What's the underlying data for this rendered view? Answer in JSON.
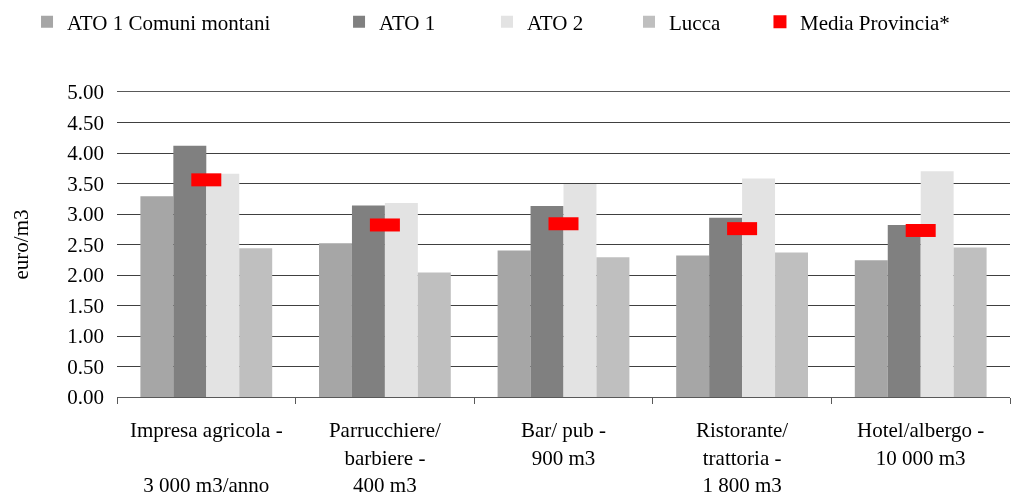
{
  "chart_data": {
    "type": "bar",
    "categories": [
      "Impresa agricola -\n\n3 000 m3/anno",
      "Parrucchiere/\nbarbiere -\n400 m3",
      "Bar/ pub -\n900 m3",
      "Ristorante/\ntrattoria -\n1 800 m3",
      "Hotel/albergo -\n10 000 m3"
    ],
    "series": [
      {
        "name": "ATO 1 Comuni montani",
        "color": "#a6a6a6",
        "values": [
          3.29,
          2.52,
          2.4,
          2.32,
          2.24
        ]
      },
      {
        "name": "ATO 1",
        "color": "#808080",
        "values": [
          4.12,
          3.14,
          3.13,
          2.94,
          2.82
        ]
      },
      {
        "name": "ATO 2",
        "color": "#e3e3e3",
        "values": [
          3.66,
          3.18,
          3.49,
          3.58,
          3.7
        ]
      },
      {
        "name": "Lucca",
        "color": "#bfbfbf",
        "values": [
          2.44,
          2.04,
          2.29,
          2.37,
          2.45
        ]
      },
      {
        "name": "Media Provincia*",
        "type": "scatter",
        "color": "#ff0000",
        "values": [
          3.56,
          2.82,
          2.84,
          2.76,
          2.73
        ]
      }
    ],
    "ylabel": "euro/m3",
    "ylim": [
      0,
      5
    ],
    "yticks": [
      {
        "value": 0,
        "label": "0.00"
      },
      {
        "value": 0.5,
        "label": "0.50"
      },
      {
        "value": 1,
        "label": "1.00"
      },
      {
        "value": 1.5,
        "label": "1.50"
      },
      {
        "value": 2,
        "label": "2.00"
      },
      {
        "value": 2.5,
        "label": "2.50"
      },
      {
        "value": 3,
        "label": "3.00"
      },
      {
        "value": 3.5,
        "label": "3.50"
      },
      {
        "value": 4,
        "label": "4.00"
      },
      {
        "value": 4.5,
        "label": "4.50"
      },
      {
        "value": 5,
        "label": "5.00"
      }
    ],
    "grid": "y",
    "legend": "top"
  }
}
